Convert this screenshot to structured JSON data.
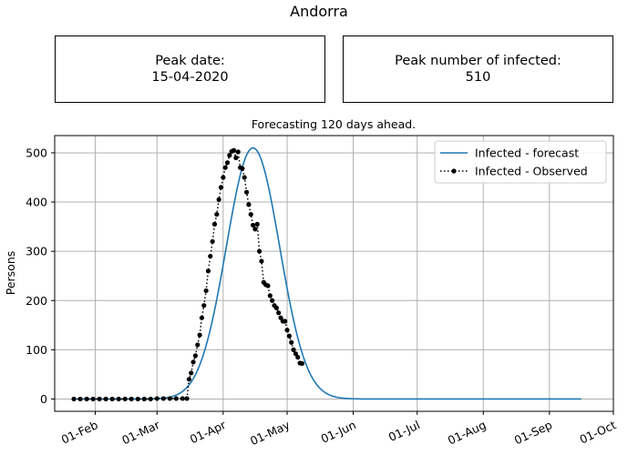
{
  "figure_title": "Andorra",
  "info_boxes": {
    "peak_date_label": "Peak date:",
    "peak_date_value": "15-04-2020",
    "peak_number_label": "Peak number of infected:",
    "peak_number_value": "510"
  },
  "chart_data": {
    "type": "line",
    "title": "Forecasting 120 days ahead.",
    "xlabel": "",
    "ylabel": "Persons",
    "x_ticks": [
      "01-Feb",
      "01-Mar",
      "01-Apr",
      "01-May",
      "01-Jun",
      "01-Jul",
      "01-Aug",
      "01-Sep",
      "01-Oct"
    ],
    "x_range": [
      "2020-01-13",
      "2020-10-01"
    ],
    "y_ticks": [
      0,
      100,
      200,
      300,
      400,
      500
    ],
    "ylim": [
      -25,
      535
    ],
    "grid": true,
    "legend_position": "top-right",
    "colors": {
      "forecast": "#1f77b4",
      "observed": "#000000",
      "grid": "#b0b0b0"
    },
    "series": [
      {
        "name": "Infected - forecast",
        "style": "solid-line",
        "model": "gaussian",
        "peak_date": "2020-04-15",
        "peak_value": 510,
        "width_days": 12.5,
        "x_start": "2020-01-22",
        "x_end": "2020-09-16"
      },
      {
        "name": "Infected - Observed",
        "style": "dotted-line-with-markers",
        "points": [
          [
            "2020-01-22",
            0
          ],
          [
            "2020-01-25",
            0
          ],
          [
            "2020-01-28",
            0
          ],
          [
            "2020-01-31",
            0
          ],
          [
            "2020-02-03",
            0
          ],
          [
            "2020-02-06",
            0
          ],
          [
            "2020-02-09",
            0
          ],
          [
            "2020-02-12",
            0
          ],
          [
            "2020-02-15",
            0
          ],
          [
            "2020-02-18",
            0
          ],
          [
            "2020-02-21",
            0
          ],
          [
            "2020-02-24",
            0
          ],
          [
            "2020-02-27",
            0
          ],
          [
            "2020-03-01",
            1
          ],
          [
            "2020-03-04",
            1
          ],
          [
            "2020-03-07",
            1
          ],
          [
            "2020-03-10",
            1
          ],
          [
            "2020-03-13",
            1
          ],
          [
            "2020-03-15",
            1
          ],
          [
            "2020-03-16",
            40
          ],
          [
            "2020-03-17",
            53
          ],
          [
            "2020-03-18",
            75
          ],
          [
            "2020-03-19",
            88
          ],
          [
            "2020-03-20",
            110
          ],
          [
            "2020-03-21",
            130
          ],
          [
            "2020-03-22",
            165
          ],
          [
            "2020-03-23",
            190
          ],
          [
            "2020-03-24",
            220
          ],
          [
            "2020-03-25",
            260
          ],
          [
            "2020-03-26",
            290
          ],
          [
            "2020-03-27",
            320
          ],
          [
            "2020-03-28",
            355
          ],
          [
            "2020-03-29",
            375
          ],
          [
            "2020-03-30",
            405
          ],
          [
            "2020-03-31",
            430
          ],
          [
            "2020-04-01",
            450
          ],
          [
            "2020-04-02",
            470
          ],
          [
            "2020-04-03",
            480
          ],
          [
            "2020-04-04",
            495
          ],
          [
            "2020-04-05",
            503
          ],
          [
            "2020-04-06",
            505
          ],
          [
            "2020-04-07",
            490
          ],
          [
            "2020-04-08",
            502
          ],
          [
            "2020-04-09",
            470
          ],
          [
            "2020-04-10",
            468
          ],
          [
            "2020-04-11",
            450
          ],
          [
            "2020-04-12",
            420
          ],
          [
            "2020-04-13",
            395
          ],
          [
            "2020-04-14",
            375
          ],
          [
            "2020-04-15",
            353
          ],
          [
            "2020-04-16",
            345
          ],
          [
            "2020-04-17",
            355
          ],
          [
            "2020-04-18",
            300
          ],
          [
            "2020-04-19",
            280
          ],
          [
            "2020-04-20",
            237
          ],
          [
            "2020-04-21",
            232
          ],
          [
            "2020-04-22",
            230
          ],
          [
            "2020-04-23",
            210
          ],
          [
            "2020-04-24",
            200
          ],
          [
            "2020-04-25",
            190
          ],
          [
            "2020-04-26",
            185
          ],
          [
            "2020-04-27",
            175
          ],
          [
            "2020-04-28",
            165
          ],
          [
            "2020-04-29",
            158
          ],
          [
            "2020-04-30",
            158
          ],
          [
            "2020-05-01",
            140
          ],
          [
            "2020-05-02",
            128
          ],
          [
            "2020-05-03",
            115
          ],
          [
            "2020-05-04",
            100
          ],
          [
            "2020-05-05",
            92
          ],
          [
            "2020-05-06",
            85
          ],
          [
            "2020-05-07",
            73
          ],
          [
            "2020-05-08",
            72
          ]
        ]
      }
    ]
  }
}
